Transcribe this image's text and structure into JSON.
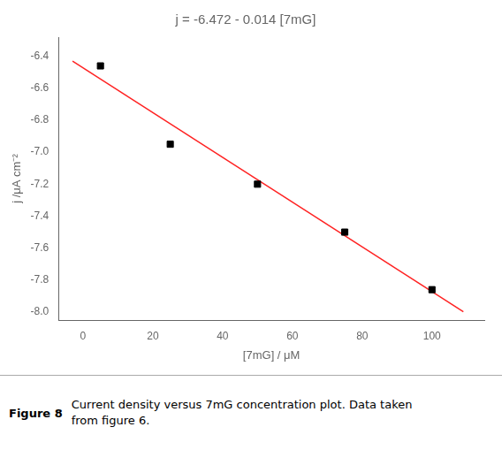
{
  "chart_data": {
    "type": "scatter",
    "title": "j = -6.472 - 0.014 [7mG]",
    "xlabel": "[7mG] / μM",
    "ylabel": "j /μA cm⁻²",
    "series": [
      {
        "type": "scatter",
        "x": [
          5,
          25,
          50,
          75,
          100
        ],
        "values": [
          -6.46,
          -6.95,
          -7.2,
          -7.5,
          -7.86
        ],
        "color": "#000000",
        "marker": "square"
      },
      {
        "type": "line",
        "x": [
          -3,
          109
        ],
        "values": [
          -6.43,
          -7.998
        ],
        "color": "#ff2222"
      }
    ],
    "xlim": [
      -7,
      115
    ],
    "ylim": [
      -8.05,
      -6.28
    ],
    "xticks": [
      0,
      20,
      40,
      60,
      80,
      100
    ],
    "yticks": [
      -6.4,
      -6.6,
      -6.8,
      {
        "value": -7.0,
        "label": "-7.0"
      },
      -7.2,
      -7.4,
      -7.6,
      -7.8,
      {
        "value": -8.0,
        "label": "-8.0"
      }
    ],
    "grid": false,
    "annotations": [
      "Figure 8",
      "Current density versus 7mG concentration plot. Data taken\nfrom figure 6."
    ]
  }
}
